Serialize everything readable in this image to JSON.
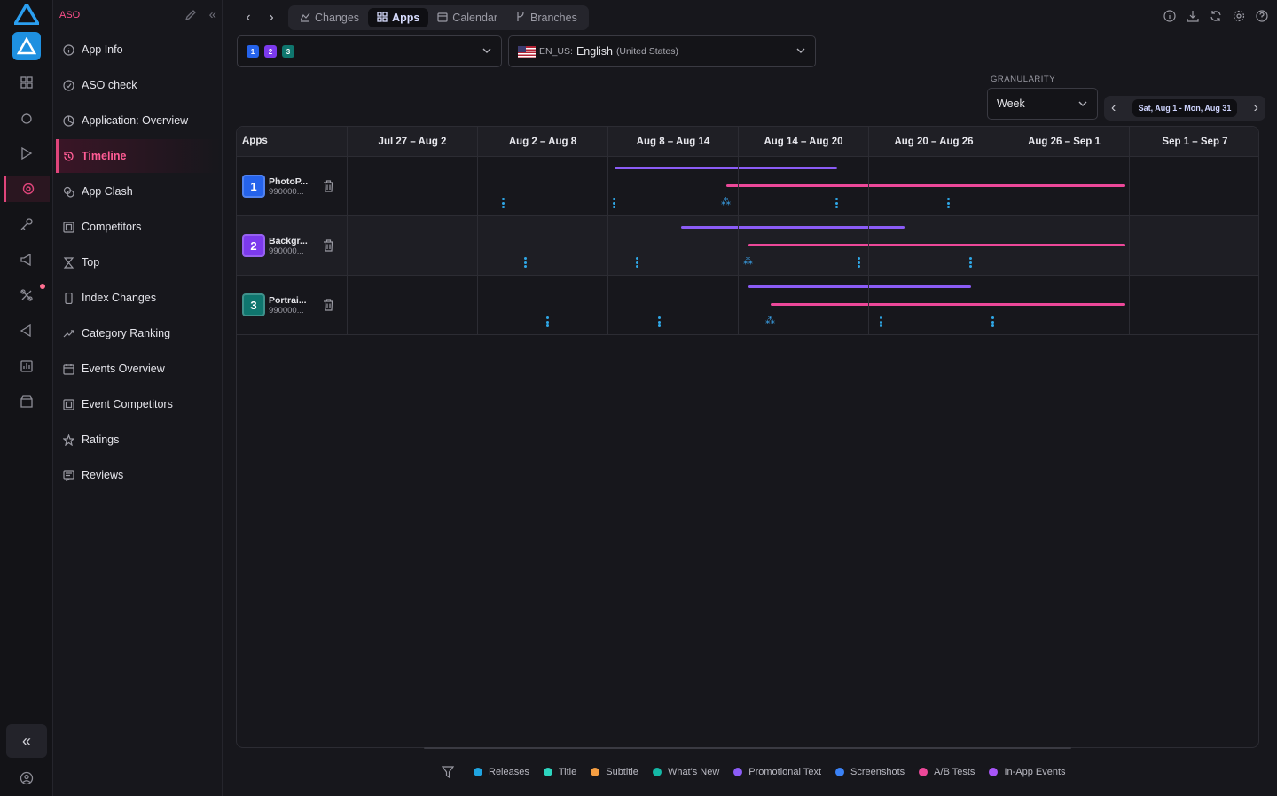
{
  "sidebar": {
    "header": "ASO",
    "items": [
      {
        "label": "App Info",
        "icon": "info-icon"
      },
      {
        "label": "ASO check",
        "icon": "check-circle-icon"
      },
      {
        "label": "Application: Overview",
        "icon": "pie-chart-icon"
      },
      {
        "label": "Timeline",
        "icon": "history-icon"
      },
      {
        "label": "App Clash",
        "icon": "clash-icon"
      },
      {
        "label": "Competitors",
        "icon": "competitors-icon"
      },
      {
        "label": "Top",
        "icon": "trophy-icon"
      },
      {
        "label": "Index Changes",
        "icon": "phone-icon"
      },
      {
        "label": "Category Ranking",
        "icon": "trend-icon"
      },
      {
        "label": "Events Overview",
        "icon": "calendar-icon"
      },
      {
        "label": "Event Competitors",
        "icon": "event-competitors-icon"
      },
      {
        "label": "Ratings",
        "icon": "star-icon"
      },
      {
        "label": "Reviews",
        "icon": "reviews-icon"
      }
    ],
    "active": "Timeline"
  },
  "topnav": {
    "tabs": [
      {
        "label": "Changes",
        "icon": "changes-icon"
      },
      {
        "label": "Apps",
        "icon": "apps-grid-icon"
      },
      {
        "label": "Calendar",
        "icon": "calendar-icon"
      },
      {
        "label": "Branches",
        "icon": "branches-icon"
      }
    ],
    "active_tab": "Apps"
  },
  "app_selector": {
    "badges": [
      "1",
      "2",
      "3"
    ]
  },
  "locale": {
    "code": "EN_US:",
    "language": "English",
    "region": "(United States)"
  },
  "granularity": {
    "label": "GRANULARITY",
    "value": "Week"
  },
  "date_range": {
    "value": "Sat, Aug 1 - Mon, Aug 31"
  },
  "grid": {
    "apps_header": "Apps",
    "columns": [
      "Jul 27 – Aug 2",
      "Aug 2 – Aug 8",
      "Aug 8 – Aug 14",
      "Aug 14 – Aug 20",
      "Aug 20 – Aug 26",
      "Aug 26 – Sep 1",
      "Sep 1 – Sep 7"
    ],
    "apps": [
      {
        "num": "1",
        "name": "PhotoP...",
        "id": "990000...",
        "color": "#2563eb"
      },
      {
        "num": "2",
        "name": "Backgr...",
        "id": "990000...",
        "color": "#7c3aed"
      },
      {
        "num": "3",
        "name": "Portrai...",
        "id": "990000...",
        "color": "#0f766e"
      }
    ]
  },
  "legend": [
    {
      "label": "Releases",
      "color": "#1fa4e0"
    },
    {
      "label": "Title",
      "color": "#2dd4bf"
    },
    {
      "label": "Subtitle",
      "color": "#f59e42"
    },
    {
      "label": "What's New",
      "color": "#14b8a6"
    },
    {
      "label": "Promotional Text",
      "color": "#8b5cf6"
    },
    {
      "label": "Screenshots",
      "color": "#3b82f6"
    },
    {
      "label": "A/B Tests",
      "color": "#ec4899"
    },
    {
      "label": "In-App Events",
      "color": "#a855f7"
    }
  ]
}
